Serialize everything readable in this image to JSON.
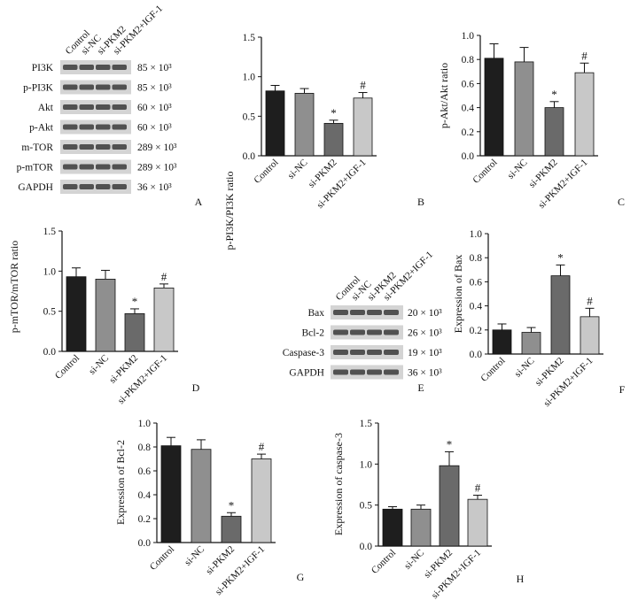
{
  "colors": {
    "control": "#1e1e1e",
    "si_nc": "#8f8f8f",
    "si_pkm2": "#6a6a6a",
    "si_pkm2_igf1": "#c8c8c8",
    "axis": "#111111",
    "blot_band": "#3a3a3a",
    "blot_bg": "#d4d4d4"
  },
  "groups": [
    "Control",
    "si-NC",
    "si-PKM2",
    "si-PKM2+IGF-1"
  ],
  "blots": [
    {
      "panel": "A",
      "lane_labels": [
        "Control",
        "si-NC",
        "si-PKM2",
        "si-PKM2+IGF-1"
      ],
      "rows": [
        {
          "protein": "PI3K",
          "mw": "85 × 10³"
        },
        {
          "protein": "p-PI3K",
          "mw": "85 × 10³"
        },
        {
          "protein": "Akt",
          "mw": "60 × 10³"
        },
        {
          "protein": "p-Akt",
          "mw": "60 × 10³"
        },
        {
          "protein": "m-TOR",
          "mw": "289 × 10³"
        },
        {
          "protein": "p-mTOR",
          "mw": "289 × 10³"
        },
        {
          "protein": "GAPDH",
          "mw": "36 × 10³"
        }
      ]
    },
    {
      "panel": "E",
      "lane_labels": [
        "Control",
        "si-NC",
        "si-PKM2",
        "si-PKM2+IGF-1"
      ],
      "rows": [
        {
          "protein": "Bax",
          "mw": "20 × 10³"
        },
        {
          "protein": "Bcl-2",
          "mw": "26 × 10³"
        },
        {
          "protein": "Caspase-3",
          "mw": "19 × 10³"
        },
        {
          "protein": "GAPDH",
          "mw": "36 × 10³"
        }
      ]
    }
  ],
  "chart_data": [
    {
      "panel": "B",
      "type": "bar",
      "categories": [
        "Control",
        "si-NC",
        "si-PKM2",
        "si-PKM2+IGF-1"
      ],
      "values": [
        0.82,
        0.79,
        0.41,
        0.73
      ],
      "errors": [
        0.07,
        0.06,
        0.04,
        0.07
      ],
      "marks": [
        "",
        "",
        "*",
        "#"
      ],
      "ylabel": "p-PI3K/PI3K ratio",
      "ylim": [
        0,
        1.5
      ],
      "yticks": [
        "0.0",
        "0.5",
        "1.0",
        "1.5"
      ]
    },
    {
      "panel": "C",
      "type": "bar",
      "categories": [
        "Control",
        "si-NC",
        "si-PKM2",
        "si-PKM2+IGF-1"
      ],
      "values": [
        0.81,
        0.78,
        0.4,
        0.69
      ],
      "errors": [
        0.12,
        0.12,
        0.05,
        0.08
      ],
      "marks": [
        "",
        "",
        "*",
        "#"
      ],
      "ylabel": "p-Akt/Akt ratio",
      "ylim": [
        0,
        1.0
      ],
      "yticks": [
        "0.0",
        "0.2",
        "0.4",
        "0.6",
        "0.8",
        "1.0"
      ]
    },
    {
      "panel": "D",
      "type": "bar",
      "categories": [
        "Control",
        "si-NC",
        "si-PKM2",
        "si-PKM2+IGF-1"
      ],
      "values": [
        0.93,
        0.9,
        0.47,
        0.79
      ],
      "errors": [
        0.11,
        0.11,
        0.06,
        0.05
      ],
      "marks": [
        "",
        "",
        "*",
        "#"
      ],
      "ylabel": "p-mTOR/mTOR ratio",
      "ylim": [
        0,
        1.5
      ],
      "yticks": [
        "0.0",
        "0.5",
        "1.0",
        "1.5"
      ]
    },
    {
      "panel": "F",
      "type": "bar",
      "categories": [
        "Control",
        "si-NC",
        "si-PKM2",
        "si-PKM2+IGF-1"
      ],
      "values": [
        0.2,
        0.18,
        0.65,
        0.31
      ],
      "errors": [
        0.05,
        0.04,
        0.09,
        0.07
      ],
      "marks": [
        "",
        "",
        "*",
        "#"
      ],
      "ylabel": "Expression of Bax",
      "ylim": [
        0,
        1.0
      ],
      "yticks": [
        "0.0",
        "0.2",
        "0.4",
        "0.6",
        "0.8",
        "1.0"
      ]
    },
    {
      "panel": "G",
      "type": "bar",
      "categories": [
        "Control",
        "si-NC",
        "si-PKM2",
        "si-PKM2+IGF-1"
      ],
      "values": [
        0.81,
        0.78,
        0.22,
        0.7
      ],
      "errors": [
        0.07,
        0.08,
        0.03,
        0.04
      ],
      "marks": [
        "",
        "",
        "*",
        "#"
      ],
      "ylabel": "Expression of Bcl-2",
      "ylim": [
        0,
        1.0
      ],
      "yticks": [
        "0.0",
        "0.2",
        "0.4",
        "0.6",
        "0.8",
        "1.0"
      ]
    },
    {
      "panel": "H",
      "type": "bar",
      "categories": [
        "Control",
        "si-NC",
        "si-PKM2",
        "si-PKM2+IGF-1"
      ],
      "values": [
        0.45,
        0.45,
        0.98,
        0.57
      ],
      "errors": [
        0.03,
        0.05,
        0.17,
        0.05
      ],
      "marks": [
        "",
        "",
        "*",
        "#"
      ],
      "ylabel": "Expression of caspase-3",
      "ylim": [
        0,
        1.5
      ],
      "yticks": [
        "0.0",
        "0.5",
        "1.0",
        "1.5"
      ]
    }
  ]
}
